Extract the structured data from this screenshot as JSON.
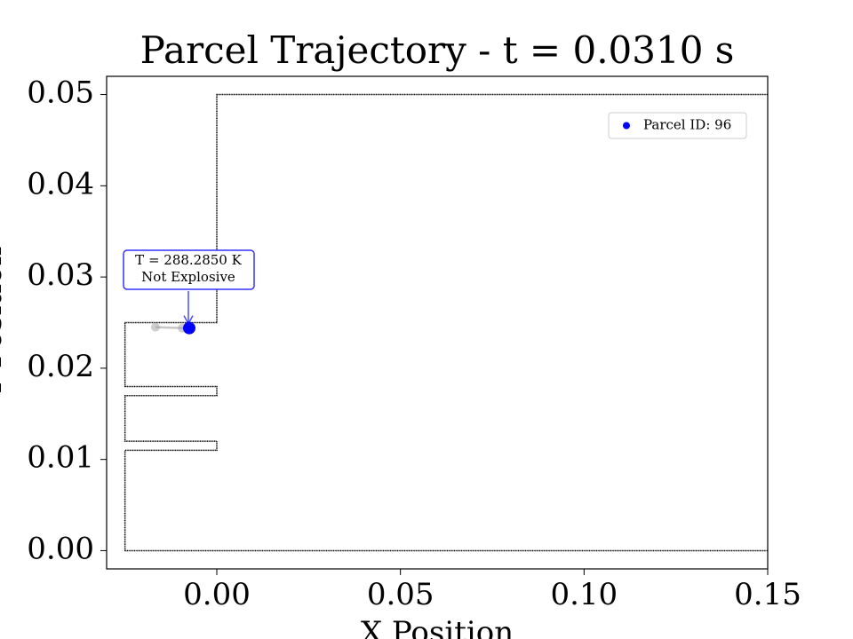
{
  "chart_data": {
    "type": "scatter",
    "title": "Parcel Trajectory - t = 0.0310 s",
    "x_label": "X Position",
    "y_label": "Y Position",
    "xlim": [
      -0.03,
      0.15
    ],
    "ylim": [
      -0.002,
      0.052
    ],
    "xticks": [
      {
        "value": 0,
        "label": "0.00"
      },
      {
        "value": 0.05,
        "label": "0.05"
      },
      {
        "value": 0.1,
        "label": "0.10"
      },
      {
        "value": 0.15,
        "label": "0.15"
      }
    ],
    "yticks": [
      {
        "value": 0,
        "label": "0.00"
      },
      {
        "value": 0.01,
        "label": "0.01"
      },
      {
        "value": 0.02,
        "label": "0.02"
      },
      {
        "value": 0.03,
        "label": "0.03"
      },
      {
        "value": 0.04,
        "label": "0.04"
      },
      {
        "value": 0.05,
        "label": "0.05"
      }
    ],
    "boundary": {
      "color": "#000000",
      "x": [
        0.15,
        -0.025,
        -0.025,
        0,
        0,
        -0.025,
        -0.025,
        0,
        0,
        -0.025,
        -0.025,
        0,
        0,
        0.15
      ],
      "y": [
        0,
        0,
        0.011,
        0.011,
        0.012,
        0.012,
        0.017,
        0.017,
        0.018,
        0.018,
        0.025,
        0.025,
        0.05,
        0.05
      ]
    },
    "trail": {
      "color": "#a0a0a0",
      "x": [
        -0.0167,
        -0.0094,
        -0.0075
      ],
      "y": [
        0.0245,
        0.0244,
        0.0244
      ]
    },
    "series": [
      {
        "name": "Parcel ID: 96",
        "color": "#0000ff",
        "x": [
          -0.0075
        ],
        "y": [
          0.0244
        ]
      }
    ],
    "annotation": {
      "lines": [
        "T = 288.2850 K",
        "Not Explosive"
      ],
      "color": "#0000ff"
    },
    "legend": "upper right"
  }
}
